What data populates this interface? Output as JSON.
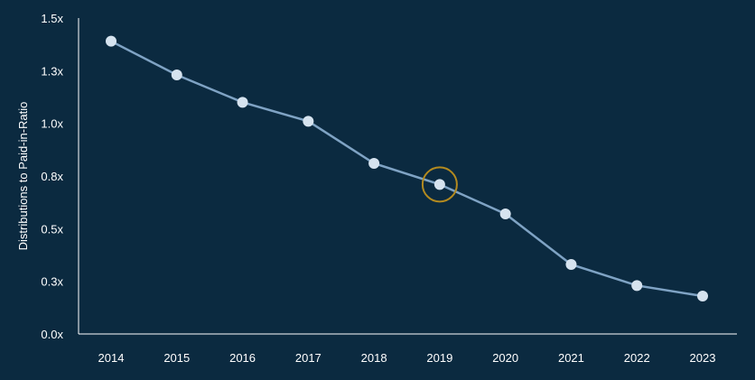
{
  "chart_data": {
    "type": "line",
    "title": "",
    "xlabel": "",
    "ylabel": "Distributions to Paid-in-Ratio",
    "categories": [
      "2014",
      "2015",
      "2016",
      "2017",
      "2018",
      "2019",
      "2020",
      "2021",
      "2022",
      "2023"
    ],
    "series": [
      {
        "values": [
          1.39,
          1.23,
          1.1,
          1.01,
          0.81,
          0.71,
          0.57,
          0.33,
          0.23,
          0.18
        ]
      }
    ],
    "y_ticks": [
      {
        "value": 0.0,
        "label": "0.0x"
      },
      {
        "value": 0.25,
        "label": "0.3x"
      },
      {
        "value": 0.5,
        "label": "0.5x"
      },
      {
        "value": 0.75,
        "label": "0.8x"
      },
      {
        "value": 1.0,
        "label": "1.0x"
      },
      {
        "value": 1.25,
        "label": "1.3x"
      },
      {
        "value": 1.5,
        "label": "1.5x"
      }
    ],
    "ylim": [
      0,
      1.5
    ],
    "grid": false,
    "highlight": {
      "category": "2019"
    },
    "colors": {
      "background": "#0b2a40",
      "line": "#7fa3c4",
      "point": "#d6e3ef",
      "highlight_ring": "#b38a1f",
      "text": "#ffffff"
    }
  }
}
